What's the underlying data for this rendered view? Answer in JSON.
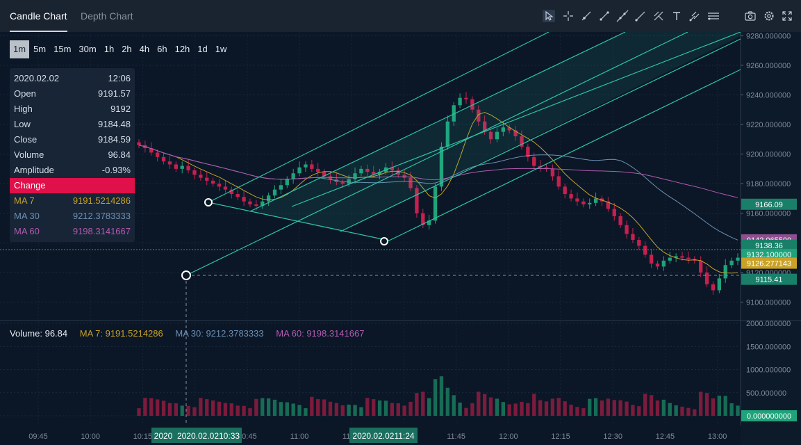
{
  "tabs": [
    {
      "label": "Candle Chart",
      "active": true
    },
    {
      "label": "Depth Chart",
      "active": false
    }
  ],
  "toolbar": {
    "tools": [
      "cursor-icon",
      "crosshair-icon",
      "ray-icon",
      "segment-icon",
      "extended-line-icon",
      "trend-line-icon",
      "fork-icon",
      "text-icon",
      "pitchfork-icon",
      "parallel-channel-icon"
    ],
    "actions": [
      "camera-icon",
      "gear-icon",
      "expand-icon"
    ]
  },
  "intervals": [
    "1m",
    "5m",
    "15m",
    "30m",
    "1h",
    "2h",
    "4h",
    "6h",
    "12h",
    "1d",
    "1w"
  ],
  "active_interval": "1m",
  "info": {
    "date": "2020.02.02",
    "time": "12:06",
    "open_label": "Open",
    "open": "9191.57",
    "high_label": "High",
    "high": "9192",
    "low_label": "Low",
    "low": "9184.48",
    "close_label": "Close",
    "close": "9184.59",
    "volume_label": "Volume",
    "volume": "96.84",
    "amplitude_label": "Amplitude",
    "amplitude": "-0.93%",
    "change_label": "Change",
    "ma7_label": "MA 7",
    "ma7": "9191.5214286",
    "ma30_label": "MA 30",
    "ma30": "9212.3783333",
    "ma60_label": "MA 60",
    "ma60": "9198.3141667"
  },
  "volume_legend": {
    "volume": "Volume: 96.84",
    "ma7": "MA 7: 9191.5214286",
    "ma30": "MA 30: 9212.3783333",
    "ma60": "MA 60: 9198.3141667"
  },
  "colors": {
    "up": "#1fa37a",
    "down": "#c7204f",
    "ma7": "#c9a227",
    "ma30": "#6d8fb3",
    "ma60": "#b35ab0",
    "channel": "#2ec4a6"
  },
  "chart_data": {
    "type": "candlestick",
    "price_axis": {
      "ticks": [
        "9280.000000",
        "9260.000000",
        "9240.000000",
        "9220.000000",
        "9200.000000",
        "9180.000000",
        "9160.000000",
        "9140.000000",
        "9120.000000",
        "9100.000000"
      ],
      "range": [
        9088,
        9282
      ]
    },
    "volume_axis": {
      "ticks": [
        "2000.000000",
        "1500.000000",
        "1000.000000",
        "500.000000",
        "0.000000000"
      ],
      "range": [
        0,
        2000
      ]
    },
    "time_axis": [
      "09:45",
      "10:00",
      "10:15",
      "10:30",
      "10:45",
      "11:00",
      "11:15",
      "11:30",
      "11:45",
      "12:00",
      "12:15",
      "12:30",
      "12:45",
      "13:00"
    ],
    "price_tags": [
      {
        "label": "9166.09",
        "value": 9166.09,
        "color": "#1a7f69"
      },
      {
        "label": "9142.065500",
        "value": 9142.0655,
        "color": "#8e4f8f"
      },
      {
        "label": "9138.36",
        "value": 9138.36,
        "color": "#1a7f69"
      },
      {
        "label": "9132.100000",
        "value": 9132.1,
        "color": "#1fa37a"
      },
      {
        "label": "9126.277143",
        "value": 9126.277143,
        "color": "#c9a227"
      },
      {
        "label": "9115.41",
        "value": 9115.41,
        "color": "#1a7f69"
      }
    ],
    "volume_tag": "0.000000000",
    "time_tags": [
      "2020",
      "2020.02.0210:33",
      "2020.02.0211:24"
    ],
    "close_series": [
      9206,
      9204,
      9201,
      9198,
      9195,
      9193,
      9190,
      9192,
      9189,
      9186,
      9184,
      9182,
      9180,
      9178,
      9176,
      9173,
      9171,
      9168,
      9166,
      9165,
      9168,
      9172,
      9176,
      9179,
      9183,
      9187,
      9191,
      9193,
      9190,
      9188,
      9185,
      9183,
      9181,
      9180,
      9183,
      9187,
      9190,
      9188,
      9186,
      9188,
      9191,
      9189,
      9186,
      9184,
      9177,
      9160,
      9152,
      9155,
      9178,
      9205,
      9222,
      9233,
      9238,
      9237,
      9230,
      9222,
      9215,
      9210,
      9215,
      9218,
      9216,
      9212,
      9205,
      9198,
      9192,
      9191,
      9190,
      9185,
      9178,
      9173,
      9170,
      9168,
      9166,
      9167,
      9170,
      9168,
      9163,
      9158,
      9152,
      9146,
      9142,
      9138,
      9132,
      9126,
      9124,
      9128,
      9130,
      9131,
      9130,
      9129,
      9128,
      9120,
      9112,
      9108,
      9116,
      9125,
      9128,
      9130
    ]
  }
}
